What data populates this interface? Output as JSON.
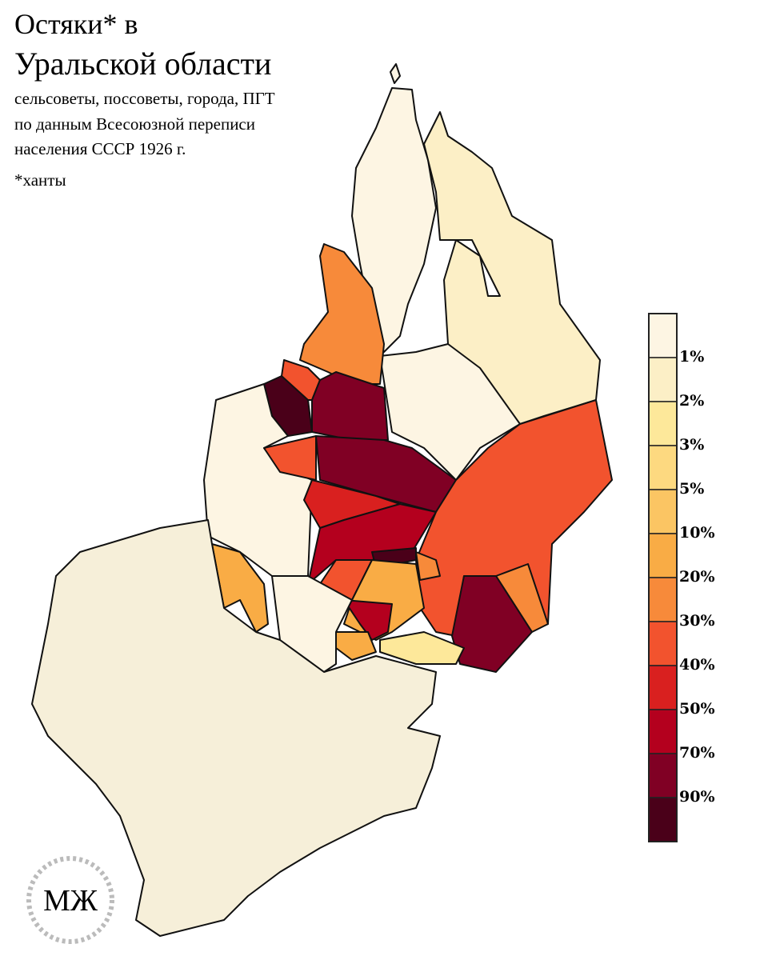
{
  "title": [
    "Остяки* в",
    "Уральской области"
  ],
  "subtitle": [
    "сельсоветы, поссоветы, города, ПГТ",
    "по данным Всесоюзной переписи",
    "населения СССР 1926 г."
  ],
  "note": "*ханты",
  "legend": {
    "labels": [
      "1%",
      "2%",
      "3%",
      "5%",
      "10%",
      "20%",
      "30%",
      "40%",
      "50%",
      "70%",
      "90%"
    ],
    "colors": [
      "#fdf5e3",
      "#fcefc6",
      "#fde89a",
      "#fdd980",
      "#fbc563",
      "#f9ac45",
      "#f78a3a",
      "#f2532e",
      "#d9201f",
      "#b4001e",
      "#800024",
      "#4a0019"
    ]
  },
  "logo": "МЖ"
}
